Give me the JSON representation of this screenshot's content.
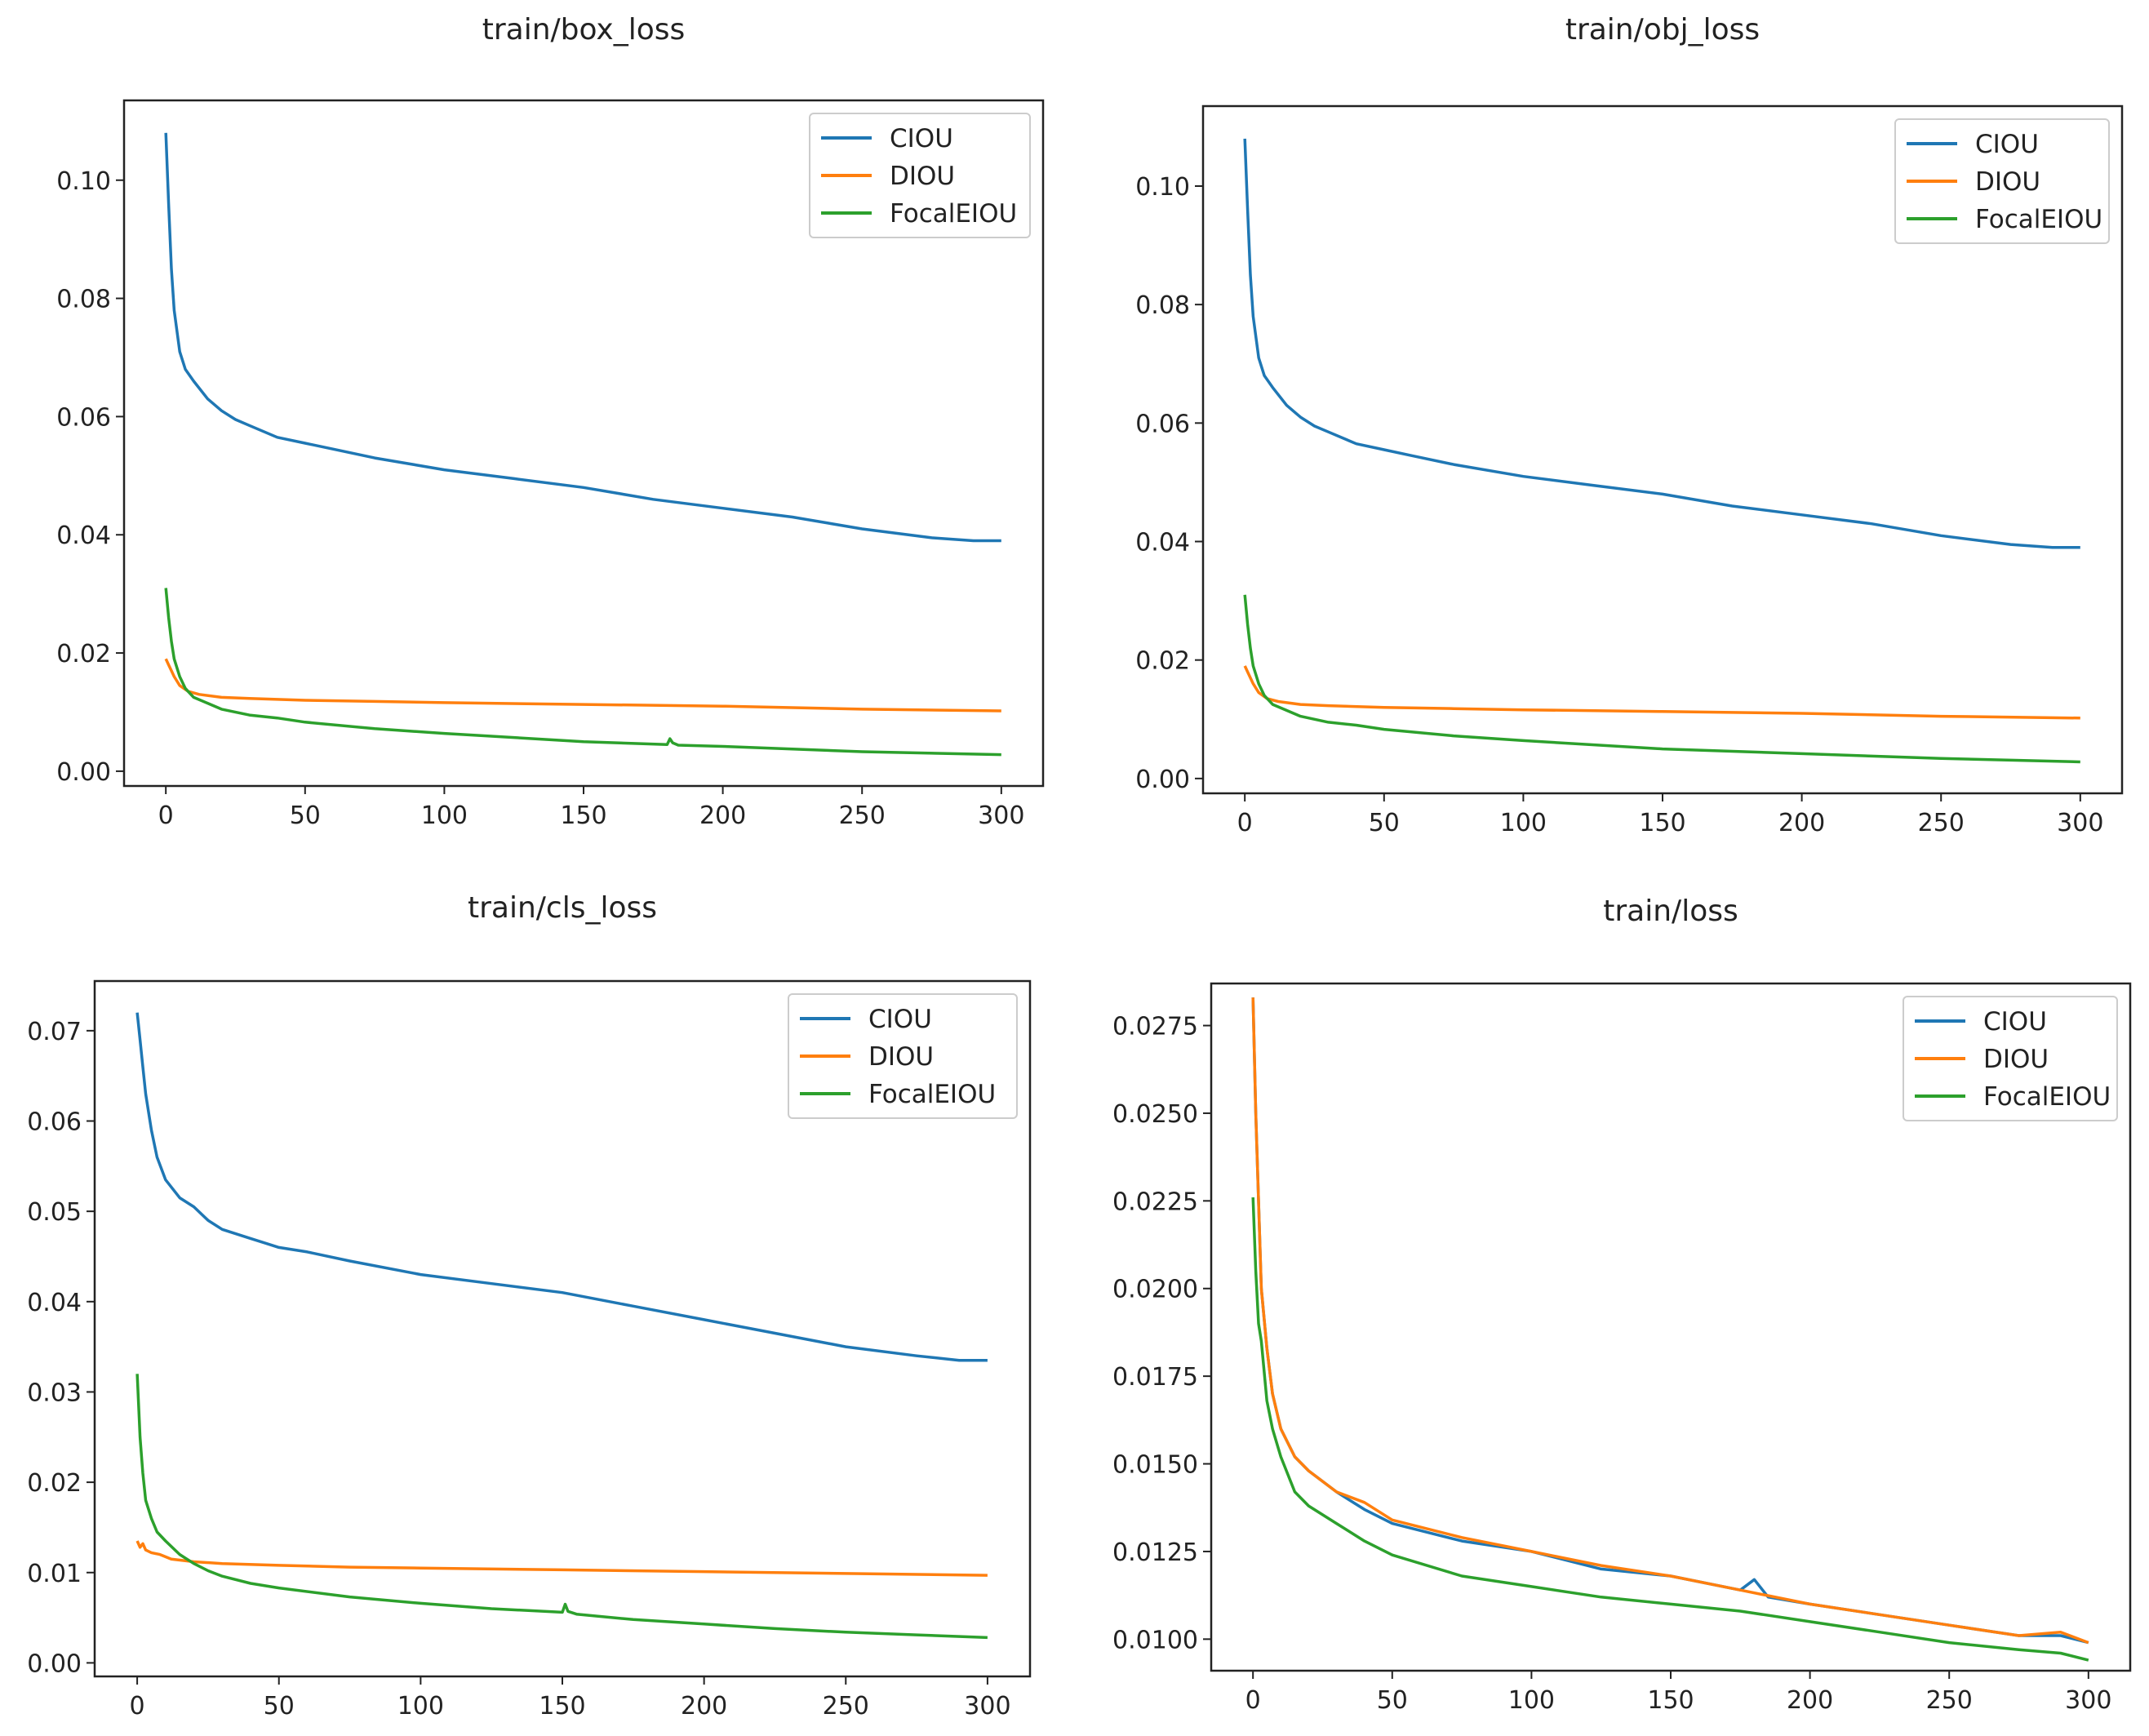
{
  "colors": {
    "CIOU": "#1f77b4",
    "DIOU": "#ff7f0e",
    "FocalEIOU": "#2ca02c"
  },
  "chart_data": [
    {
      "type": "line",
      "title": "train/box_loss",
      "xlabel": "",
      "ylabel": "",
      "xlim": [
        -15,
        315
      ],
      "ylim": [
        -0.0025,
        0.1135
      ],
      "xticks": [
        "0",
        "50",
        "100",
        "150",
        "200",
        "250",
        "300"
      ],
      "xtick_values": [
        0,
        50,
        100,
        150,
        200,
        250,
        300
      ],
      "yticks": [
        "0.00",
        "0.02",
        "0.04",
        "0.06",
        "0.08",
        "0.10"
      ],
      "ytick_values": [
        0,
        0.02,
        0.04,
        0.06,
        0.08,
        0.1
      ],
      "grid": false,
      "legend": "upper right",
      "series": [
        {
          "name": "CIOU",
          "x": [
            0,
            1,
            2,
            3,
            5,
            7,
            10,
            15,
            20,
            25,
            30,
            40,
            50,
            60,
            75,
            100,
            125,
            150,
            175,
            200,
            225,
            250,
            275,
            290,
            300
          ],
          "y": [
            0.108,
            0.096,
            0.085,
            0.078,
            0.071,
            0.068,
            0.066,
            0.063,
            0.061,
            0.0595,
            0.0585,
            0.0565,
            0.0555,
            0.0545,
            0.053,
            0.051,
            0.0495,
            0.048,
            0.046,
            0.0445,
            0.043,
            0.041,
            0.0395,
            0.039,
            0.039
          ]
        },
        {
          "name": "DIOU",
          "x": [
            0,
            1,
            2,
            3,
            5,
            8,
            12,
            20,
            30,
            50,
            75,
            100,
            150,
            200,
            250,
            300
          ],
          "y": [
            0.019,
            0.018,
            0.017,
            0.016,
            0.0145,
            0.0135,
            0.013,
            0.0125,
            0.0123,
            0.012,
            0.0118,
            0.0116,
            0.0113,
            0.011,
            0.0105,
            0.0102
          ]
        },
        {
          "name": "FocalEIOU",
          "x": [
            0,
            1,
            2,
            3,
            5,
            7,
            10,
            15,
            20,
            30,
            40,
            50,
            75,
            100,
            150,
            180,
            181,
            182,
            184,
            200,
            250,
            300
          ],
          "y": [
            0.031,
            0.026,
            0.022,
            0.019,
            0.016,
            0.014,
            0.0125,
            0.0115,
            0.0105,
            0.0095,
            0.009,
            0.0083,
            0.0072,
            0.0064,
            0.005,
            0.0045,
            0.0055,
            0.0048,
            0.0044,
            0.0042,
            0.0033,
            0.0028
          ]
        }
      ]
    },
    {
      "type": "line",
      "title": "train/obj_loss",
      "xlabel": "",
      "ylabel": "",
      "xlim": [
        -15,
        315
      ],
      "ylim": [
        -0.0025,
        0.1135
      ],
      "xticks": [
        "0",
        "50",
        "100",
        "150",
        "200",
        "250",
        "300"
      ],
      "xtick_values": [
        0,
        50,
        100,
        150,
        200,
        250,
        300
      ],
      "yticks": [
        "0.00",
        "0.02",
        "0.04",
        "0.06",
        "0.08",
        "0.10"
      ],
      "ytick_values": [
        0,
        0.02,
        0.04,
        0.06,
        0.08,
        0.1
      ],
      "grid": false,
      "legend": "upper right",
      "series": [
        {
          "name": "CIOU",
          "x": [
            0,
            1,
            2,
            3,
            5,
            7,
            10,
            15,
            20,
            25,
            30,
            40,
            50,
            60,
            75,
            100,
            125,
            150,
            175,
            200,
            225,
            250,
            275,
            290,
            300
          ],
          "y": [
            0.108,
            0.096,
            0.085,
            0.078,
            0.071,
            0.068,
            0.066,
            0.063,
            0.061,
            0.0595,
            0.0585,
            0.0565,
            0.0555,
            0.0545,
            0.053,
            0.051,
            0.0495,
            0.048,
            0.046,
            0.0445,
            0.043,
            0.041,
            0.0395,
            0.039,
            0.039
          ]
        },
        {
          "name": "DIOU",
          "x": [
            0,
            1,
            2,
            3,
            5,
            8,
            12,
            20,
            30,
            50,
            75,
            100,
            150,
            200,
            250,
            300
          ],
          "y": [
            0.019,
            0.018,
            0.017,
            0.016,
            0.0145,
            0.0135,
            0.013,
            0.0125,
            0.0123,
            0.012,
            0.0118,
            0.0116,
            0.0113,
            0.011,
            0.0105,
            0.0102
          ]
        },
        {
          "name": "FocalEIOU",
          "x": [
            0,
            1,
            2,
            3,
            5,
            7,
            10,
            15,
            20,
            30,
            40,
            50,
            75,
            100,
            150,
            200,
            250,
            300
          ],
          "y": [
            0.031,
            0.026,
            0.022,
            0.019,
            0.016,
            0.014,
            0.0125,
            0.0115,
            0.0105,
            0.0095,
            0.009,
            0.0083,
            0.0072,
            0.0064,
            0.005,
            0.0042,
            0.0034,
            0.0028
          ]
        }
      ]
    },
    {
      "type": "line",
      "title": "train/cls_loss",
      "xlabel": "",
      "ylabel": "",
      "xlim": [
        -15,
        315
      ],
      "ylim": [
        -0.0015,
        0.0755
      ],
      "xticks": [
        "0",
        "50",
        "100",
        "150",
        "200",
        "250",
        "300"
      ],
      "xtick_values": [
        0,
        50,
        100,
        150,
        200,
        250,
        300
      ],
      "yticks": [
        "0.00",
        "0.01",
        "0.02",
        "0.03",
        "0.04",
        "0.05",
        "0.06",
        "0.07"
      ],
      "ytick_values": [
        0,
        0.01,
        0.02,
        0.03,
        0.04,
        0.05,
        0.06,
        0.07
      ],
      "grid": false,
      "legend": "upper right",
      "series": [
        {
          "name": "CIOU",
          "x": [
            0,
            1,
            2,
            3,
            5,
            7,
            10,
            15,
            20,
            25,
            30,
            40,
            50,
            60,
            75,
            100,
            125,
            150,
            175,
            200,
            225,
            250,
            275,
            290,
            300
          ],
          "y": [
            0.072,
            0.069,
            0.066,
            0.063,
            0.059,
            0.056,
            0.0535,
            0.0515,
            0.0505,
            0.049,
            0.048,
            0.047,
            0.046,
            0.0455,
            0.0445,
            0.043,
            0.042,
            0.041,
            0.0395,
            0.038,
            0.0365,
            0.035,
            0.034,
            0.0335,
            0.0335
          ]
        },
        {
          "name": "DIOU",
          "x": [
            0,
            1,
            2,
            3,
            5,
            8,
            12,
            20,
            30,
            50,
            75,
            100,
            150,
            200,
            250,
            300
          ],
          "y": [
            0.0135,
            0.0128,
            0.0132,
            0.0125,
            0.0122,
            0.012,
            0.0115,
            0.0112,
            0.011,
            0.0108,
            0.0106,
            0.0105,
            0.0103,
            0.0101,
            0.0099,
            0.0097
          ]
        },
        {
          "name": "FocalEIOU",
          "x": [
            0,
            1,
            2,
            3,
            5,
            7,
            10,
            15,
            20,
            25,
            30,
            40,
            50,
            75,
            100,
            125,
            150,
            151,
            152,
            155,
            175,
            200,
            225,
            250,
            275,
            300
          ],
          "y": [
            0.032,
            0.025,
            0.021,
            0.018,
            0.016,
            0.0145,
            0.0135,
            0.012,
            0.011,
            0.0102,
            0.0096,
            0.0088,
            0.0083,
            0.0073,
            0.0066,
            0.006,
            0.0056,
            0.0065,
            0.0057,
            0.0054,
            0.0048,
            0.0043,
            0.0038,
            0.0034,
            0.0031,
            0.0028
          ]
        }
      ]
    },
    {
      "type": "line",
      "title": "train/loss",
      "xlabel": "",
      "ylabel": "",
      "xlim": [
        -15,
        315
      ],
      "ylim": [
        0.0091,
        0.0287
      ],
      "xticks": [
        "0",
        "50",
        "100",
        "150",
        "200",
        "250",
        "300"
      ],
      "xtick_values": [
        0,
        50,
        100,
        150,
        200,
        250,
        300
      ],
      "yticks": [
        "0.0100",
        "0.0125",
        "0.0150",
        "0.0175",
        "0.0200",
        "0.0225",
        "0.0250",
        "0.0275"
      ],
      "ytick_values": [
        0.01,
        0.0125,
        0.015,
        0.0175,
        0.02,
        0.0225,
        0.025,
        0.0275
      ],
      "grid": false,
      "legend": "upper right",
      "series": [
        {
          "name": "CIOU",
          "x": [
            0,
            1,
            2,
            3,
            5,
            7,
            10,
            15,
            20,
            30,
            40,
            50,
            75,
            100,
            125,
            150,
            175,
            180,
            185,
            200,
            225,
            250,
            275,
            290,
            300
          ],
          "y": [
            0.0283,
            0.025,
            0.0225,
            0.02,
            0.0183,
            0.017,
            0.016,
            0.0152,
            0.0148,
            0.0142,
            0.0137,
            0.0133,
            0.0128,
            0.0125,
            0.012,
            0.0118,
            0.0114,
            0.0117,
            0.0112,
            0.011,
            0.0107,
            0.0104,
            0.0101,
            0.0101,
            0.0099
          ]
        },
        {
          "name": "DIOU",
          "x": [
            0,
            1,
            2,
            3,
            5,
            7,
            10,
            15,
            20,
            30,
            40,
            50,
            75,
            100,
            125,
            150,
            175,
            200,
            225,
            250,
            275,
            290,
            300
          ],
          "y": [
            0.0283,
            0.025,
            0.0225,
            0.02,
            0.0183,
            0.017,
            0.016,
            0.0152,
            0.0148,
            0.0142,
            0.0139,
            0.0134,
            0.0129,
            0.0125,
            0.0121,
            0.0118,
            0.0114,
            0.011,
            0.0107,
            0.0104,
            0.0101,
            0.0102,
            0.0099
          ]
        },
        {
          "name": "FocalEIOU",
          "x": [
            0,
            1,
            2,
            3,
            5,
            7,
            10,
            15,
            20,
            30,
            40,
            50,
            75,
            100,
            125,
            150,
            175,
            200,
            225,
            250,
            275,
            290,
            300
          ],
          "y": [
            0.0226,
            0.0205,
            0.019,
            0.0185,
            0.0168,
            0.016,
            0.0152,
            0.0142,
            0.0138,
            0.0133,
            0.0128,
            0.0124,
            0.0118,
            0.0115,
            0.0112,
            0.011,
            0.0108,
            0.0105,
            0.0102,
            0.0099,
            0.0097,
            0.0096,
            0.0094
          ]
        }
      ]
    }
  ]
}
